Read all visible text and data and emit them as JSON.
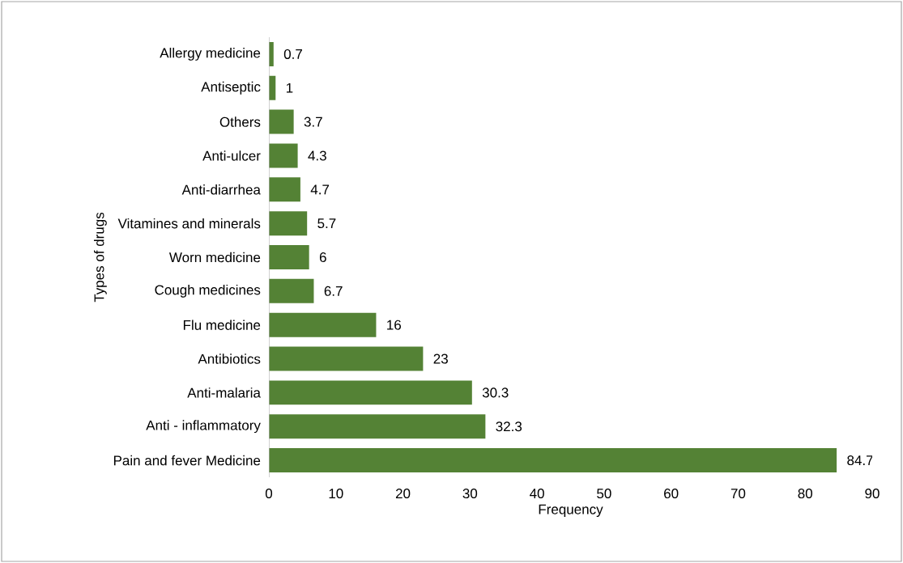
{
  "chart_data": {
    "type": "bar",
    "orientation": "horizontal",
    "xlabel": "Frequency",
    "ylabel": "Types of drugs",
    "categories": [
      "Allergy medicine",
      "Antiseptic",
      "Others",
      "Anti-ulcer",
      "Anti-diarrhea",
      "Vitamines and minerals",
      "Worn medicine",
      "Cough medicines",
      "Flu medicine",
      "Antibiotics",
      "Anti-malaria",
      "Anti - inflammatory",
      "Pain and fever Medicine"
    ],
    "values": [
      0.7,
      1,
      3.7,
      4.3,
      4.7,
      5.7,
      6,
      6.7,
      16,
      23,
      30.3,
      32.3,
      84.7
    ],
    "color": "#548235",
    "xlim": [
      0,
      90
    ],
    "xticks": [
      0,
      10,
      20,
      30,
      40,
      50,
      60,
      70,
      80,
      90
    ],
    "data_labels": true
  }
}
